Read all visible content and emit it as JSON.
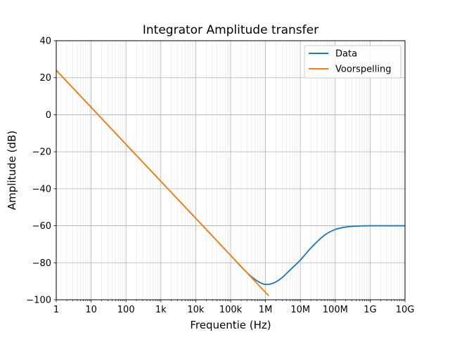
{
  "chart_data": {
    "type": "line",
    "title": "Integrator Amplitude transfer",
    "xlabel": "Frequentie (Hz)",
    "ylabel": "Amplitude (dB)",
    "xscale": "log",
    "xlim": [
      1,
      10000000000
    ],
    "ylim": [
      -100,
      40
    ],
    "xticks": [
      1,
      10,
      100,
      1000,
      10000,
      100000,
      1000000,
      10000000,
      100000000,
      1000000000,
      10000000000
    ],
    "xtick_labels": [
      "1",
      "10",
      "100",
      "1k",
      "10k",
      "100k",
      "1M",
      "10M",
      "100M",
      "1G",
      "10G"
    ],
    "yticks": [
      -100,
      -80,
      -60,
      -40,
      -20,
      0,
      20,
      40
    ],
    "ytick_labels": [
      "−100",
      "−80",
      "−60",
      "−40",
      "−20",
      "0",
      "20",
      "40"
    ],
    "grid": "major and minor",
    "legend_position": "top-right",
    "series": [
      {
        "name": "Data",
        "color": "#1f77b4",
        "x": [
          1,
          10,
          100,
          1000,
          10000,
          100000,
          300000,
          600000,
          1000000,
          1500000,
          2000000,
          3000000,
          5000000,
          10000000,
          20000000,
          50000000,
          100000000,
          200000000,
          500000000,
          1000000000,
          10000000000
        ],
        "y": [
          24,
          4,
          -16,
          -36,
          -56,
          -76,
          -85.5,
          -90,
          -91.7,
          -91.3,
          -90.3,
          -88,
          -84,
          -78.5,
          -72,
          -65,
          -62,
          -60.7,
          -60.1,
          -60,
          -60
        ]
      },
      {
        "name": "Voorspelling",
        "color": "#ff7f0e",
        "x": [
          1,
          1200000
        ],
        "y": [
          24,
          -97.6
        ]
      }
    ]
  }
}
